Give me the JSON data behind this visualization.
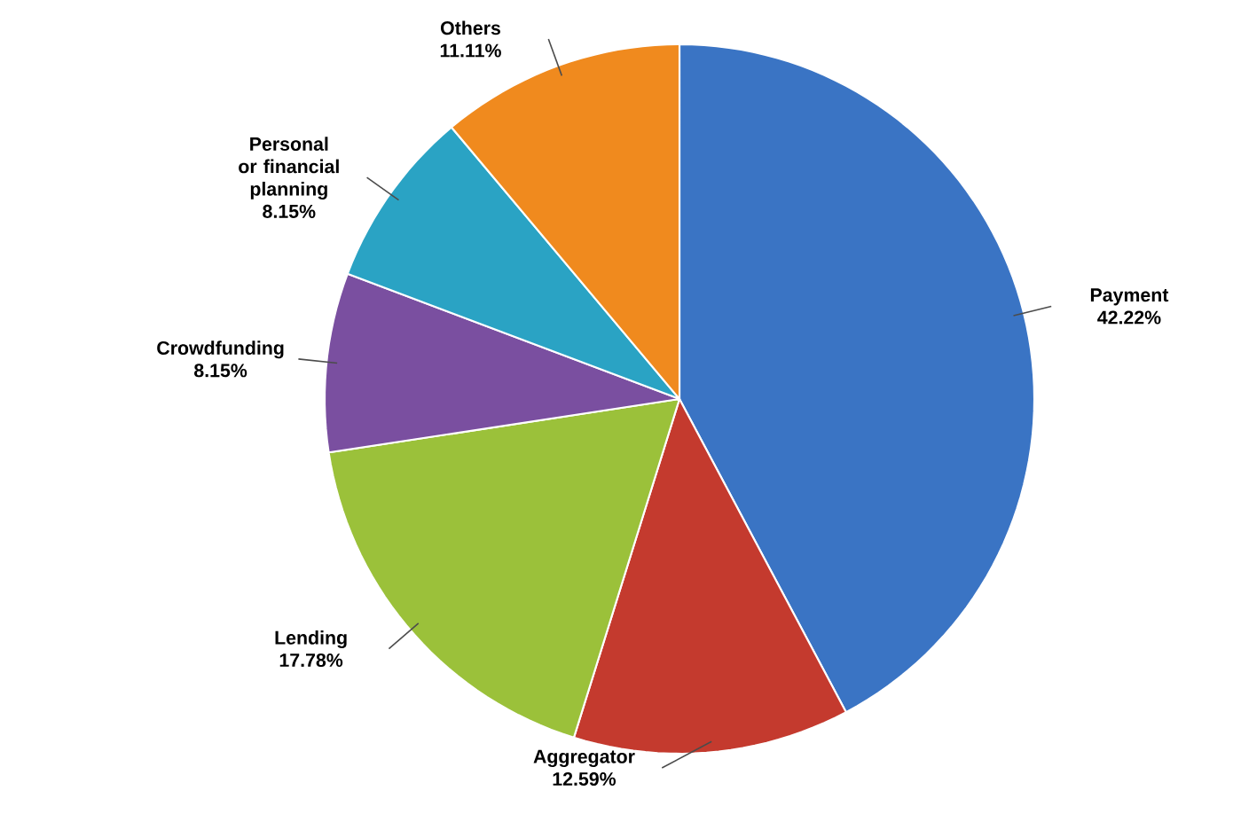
{
  "chart_data": {
    "type": "pie",
    "categories": [
      "Payment",
      "Aggregator",
      "Lending",
      "Crowdfunding",
      "Personal or financial planning",
      "Others"
    ],
    "values": [
      42.22,
      12.59,
      17.78,
      8.15,
      8.15,
      11.11
    ],
    "colors": [
      "#3a74c4",
      "#c43a2e",
      "#9bc13a",
      "#7a4fa0",
      "#2aa3c4",
      "#f08a1e"
    ],
    "value_labels": [
      "42.22%",
      "12.59%",
      "17.78%",
      "8.15%",
      "8.15%",
      "11.11%"
    ]
  }
}
